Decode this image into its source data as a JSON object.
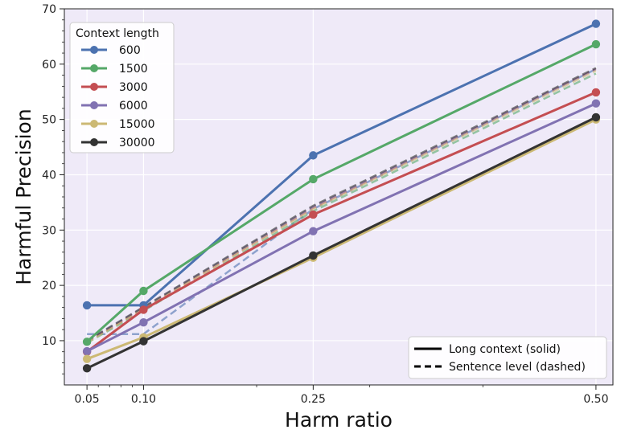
{
  "chart_data": {
    "type": "line",
    "xlabel": "Harm ratio",
    "ylabel": "Harmful Precision",
    "x": [
      0.05,
      0.1,
      0.25,
      0.5
    ],
    "x_tick_labels": [
      "0.05",
      "0.10",
      "0.25",
      "0.50"
    ],
    "xlim": [
      0.03,
      0.515
    ],
    "ylim": [
      2,
      70
    ],
    "y_ticks": [
      10,
      20,
      30,
      40,
      50,
      60,
      70
    ],
    "y_tick_labels": [
      "10",
      "20",
      "30",
      "40",
      "50",
      "60",
      "70"
    ],
    "legend_title": "Context length",
    "legend_position": "top-left",
    "style_legend_position": "bottom-right",
    "style_legend": [
      {
        "label": "Long context (solid)",
        "dash": "solid"
      },
      {
        "label": "Sentence level (dashed)",
        "dash": "dashed"
      }
    ],
    "series": [
      {
        "name": "600",
        "color": "#4c72b0",
        "long": [
          16.4,
          16.4,
          43.5,
          67.3
        ],
        "sentence": [
          11.2,
          11.2,
          33.8,
          59.1
        ]
      },
      {
        "name": "1500",
        "color": "#55a868",
        "long": [
          9.8,
          19.0,
          39.2,
          63.6
        ],
        "sentence": [
          9.6,
          15.4,
          33.4,
          58.3
        ]
      },
      {
        "name": "3000",
        "color": "#c44e52",
        "long": [
          8.0,
          15.6,
          32.8,
          54.9
        ],
        "sentence": [
          9.8,
          15.8,
          34.0,
          59.1
        ]
      },
      {
        "name": "6000",
        "color": "#8172b2",
        "long": [
          8.1,
          13.3,
          29.8,
          52.9
        ],
        "sentence": [
          9.9,
          16.0,
          34.2,
          59.1
        ]
      },
      {
        "name": "15000",
        "color": "#ccb974",
        "long": [
          6.7,
          10.6,
          25.0,
          50.0
        ],
        "sentence": [
          9.6,
          15.8,
          33.8,
          58.8
        ]
      },
      {
        "name": "30000",
        "color": "#333333",
        "long": [
          5.0,
          9.9,
          25.4,
          50.4
        ],
        "sentence": [
          10.0,
          16.1,
          34.4,
          59.3
        ]
      }
    ]
  }
}
